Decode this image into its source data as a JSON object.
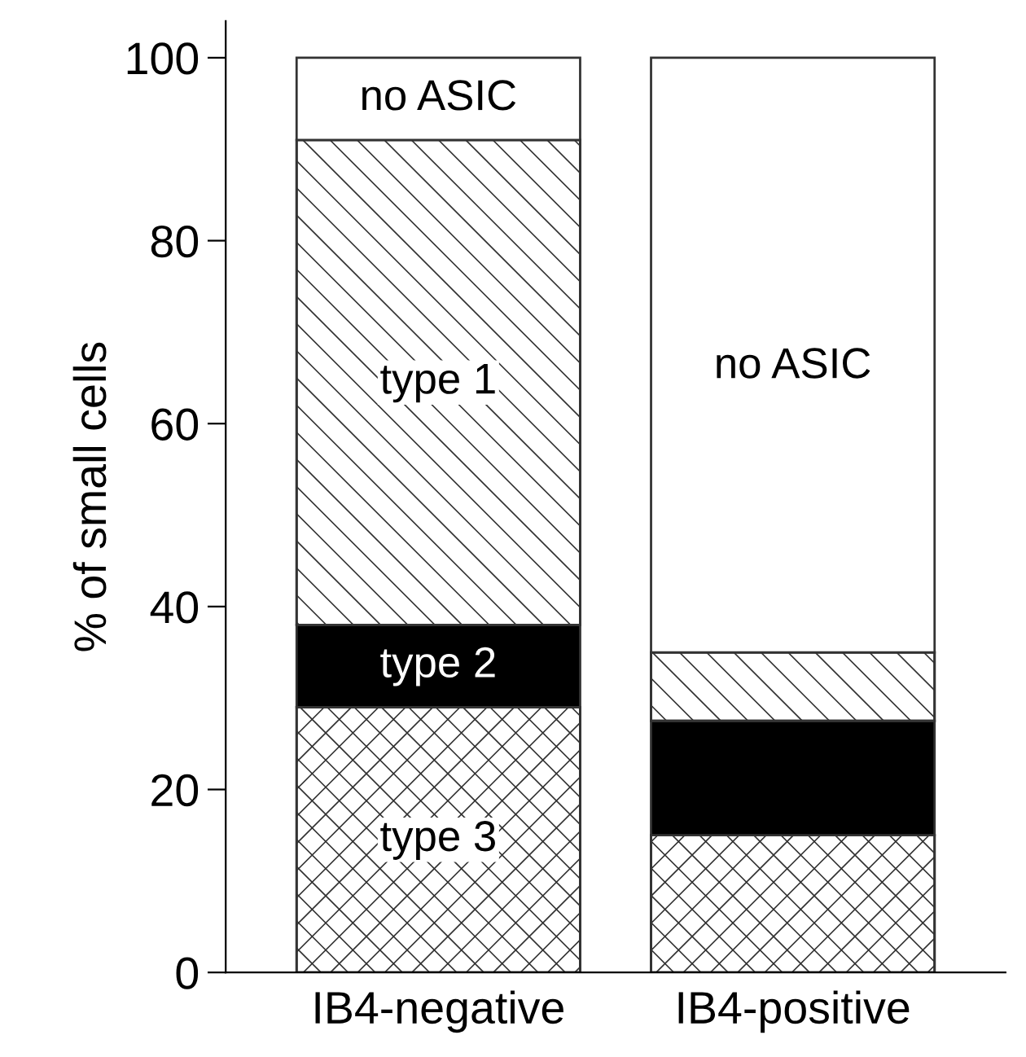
{
  "chart_data": {
    "type": "bar",
    "stacked": true,
    "ylabel": "% of small cells",
    "categories": [
      "IB4-negative",
      "IB4-positive"
    ],
    "series": [
      {
        "name": "type 3",
        "color": "#333333",
        "values": [
          29,
          15
        ]
      },
      {
        "name": "type 2",
        "color": "#000000",
        "values": [
          9,
          12.5
        ]
      },
      {
        "name": "type 1",
        "color": "#333333",
        "values": [
          53,
          7.5
        ]
      },
      {
        "name": "no ASIC",
        "color": "#ffffff",
        "values": [
          9,
          65
        ]
      }
    ],
    "annotations": [
      "no ASIC"
    ],
    "ylim": [
      0,
      104
    ],
    "yticks": [
      0,
      20,
      40,
      60,
      80,
      100
    ],
    "grid": false,
    "legend": false
  }
}
